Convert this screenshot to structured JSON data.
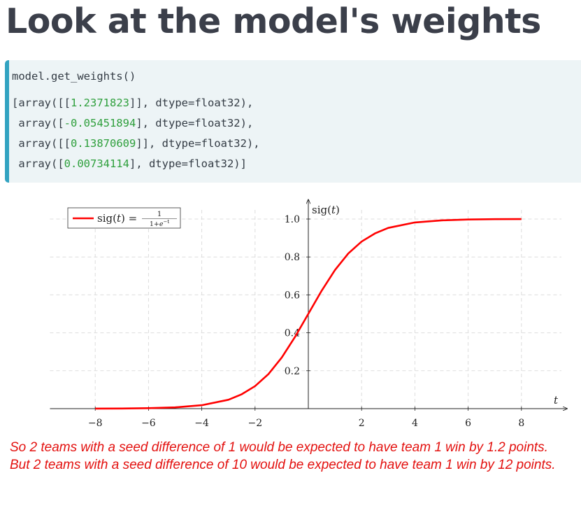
{
  "title": "Look at the model's weights",
  "code": {
    "input": "model.get_weights()",
    "output_lines": [
      {
        "prefix": "[array([[",
        "num": "1.2371823",
        "suffix": "]], dtype=float32),"
      },
      {
        "prefix": " array([",
        "num": "-0.05451894",
        "suffix": "], dtype=float32),"
      },
      {
        "prefix": " array([[",
        "num": "0.13870609",
        "suffix": "]], dtype=float32),"
      },
      {
        "prefix": " array([",
        "num": "0.00734114",
        "suffix": "], dtype=float32)]"
      }
    ]
  },
  "chart_data": {
    "type": "line",
    "function": "sigmoid",
    "x_range": [
      -8,
      8
    ],
    "xlim": [
      -9.7,
      9.5
    ],
    "ylim": [
      0,
      1.05
    ],
    "xlabel": "t",
    "ylabel": "sig(t)",
    "x_ticks": [
      -8,
      -6,
      -4,
      -2,
      2,
      4,
      6,
      8
    ],
    "x_tick_labels": [
      "−8",
      "−6",
      "−4",
      "−2",
      "2",
      "4",
      "6",
      "8"
    ],
    "y_ticks": [
      0.2,
      0.4,
      0.6,
      0.8,
      1.0
    ],
    "y_tick_labels": [
      "0.2",
      "0.4",
      "0.6",
      "0.8",
      "1.0"
    ],
    "grid": true,
    "series": [
      {
        "name": "sig(t) = 1/(1+e^−t)",
        "color": "#ff0000",
        "x": [
          -8,
          -7,
          -6,
          -5,
          -4,
          -3,
          -2.5,
          -2,
          -1.5,
          -1,
          -0.5,
          0,
          0.5,
          1,
          1.5,
          2,
          2.5,
          3,
          4,
          5,
          6,
          7,
          8
        ],
        "y": [
          0.0003,
          0.0009,
          0.0025,
          0.0067,
          0.018,
          0.047,
          0.076,
          0.119,
          0.182,
          0.269,
          0.378,
          0.5,
          0.622,
          0.731,
          0.818,
          0.881,
          0.924,
          0.953,
          0.982,
          0.993,
          0.9975,
          0.9991,
          0.9997
        ]
      }
    ],
    "legend": {
      "position": "top-left",
      "label_lhs": "sig(",
      "label_var": "t",
      "label_eq": ") =",
      "frac_num": "1",
      "frac_den_a": "1+",
      "frac_den_e": "e",
      "frac_den_exp": "−t"
    }
  },
  "caption": {
    "line1": "So 2 teams with a seed difference of 1 would be expected to have team 1 win by 1.2 points.",
    "line2": "But 2 teams with a seed difference of 10 would be expected to have team 1 win by 12 points."
  }
}
